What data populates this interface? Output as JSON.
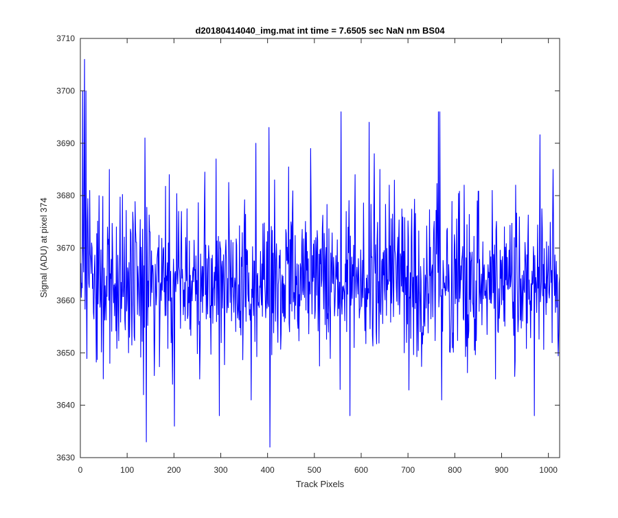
{
  "chart_data": {
    "type": "line",
    "title": "d20180414040_img.mat int time = 7.6505 sec  NaN nm BS04",
    "xlabel": "Track Pixels",
    "ylabel": "Signal (ADU) at pixel 374",
    "xlim": [
      0,
      1024
    ],
    "ylim": [
      3630,
      3710
    ],
    "xticks": [
      0,
      100,
      200,
      300,
      400,
      500,
      600,
      700,
      800,
      900,
      1000
    ],
    "yticks": [
      3630,
      3640,
      3650,
      3660,
      3670,
      3680,
      3690,
      3700,
      3710
    ],
    "grid": false,
    "legend": "none",
    "line_color": "#0000ff",
    "series": [
      {
        "num_points": 1024,
        "x_start": 1,
        "x_step": 1,
        "y_mean": 3664,
        "y_std": 7.5,
        "y_min": 3632,
        "y_max": 3706,
        "noise_seed": 374,
        "peaks": [
          {
            "x": 5,
            "y": 3700
          },
          {
            "x": 8,
            "y": 3685
          },
          {
            "x": 9,
            "y": 3706
          },
          {
            "x": 12,
            "y": 3700
          },
          {
            "x": 20,
            "y": 3681
          },
          {
            "x": 40,
            "y": 3680
          },
          {
            "x": 62,
            "y": 3685
          },
          {
            "x": 138,
            "y": 3691
          },
          {
            "x": 141,
            "y": 3633
          },
          {
            "x": 135,
            "y": 3642
          },
          {
            "x": 190,
            "y": 3684
          },
          {
            "x": 197,
            "y": 3644
          },
          {
            "x": 201,
            "y": 3636
          },
          {
            "x": 210,
            "y": 3677
          },
          {
            "x": 255,
            "y": 3645
          },
          {
            "x": 290,
            "y": 3687
          },
          {
            "x": 297,
            "y": 3638
          },
          {
            "x": 365,
            "y": 3641
          },
          {
            "x": 375,
            "y": 3690
          },
          {
            "x": 403,
            "y": 3693
          },
          {
            "x": 405,
            "y": 3632
          },
          {
            "x": 415,
            "y": 3683
          },
          {
            "x": 450,
            "y": 3675
          },
          {
            "x": 492,
            "y": 3689
          },
          {
            "x": 555,
            "y": 3643
          },
          {
            "x": 557,
            "y": 3696
          },
          {
            "x": 587,
            "y": 3684
          },
          {
            "x": 617,
            "y": 3694
          },
          {
            "x": 628,
            "y": 3688
          },
          {
            "x": 640,
            "y": 3685
          },
          {
            "x": 660,
            "y": 3682
          },
          {
            "x": 692,
            "y": 3650
          },
          {
            "x": 765,
            "y": 3696
          },
          {
            "x": 768,
            "y": 3696
          },
          {
            "x": 772,
            "y": 3641
          },
          {
            "x": 820,
            "y": 3682
          },
          {
            "x": 880,
            "y": 3681
          },
          {
            "x": 887,
            "y": 3645
          },
          {
            "x": 930,
            "y": 3682
          },
          {
            "x": 970,
            "y": 3638
          },
          {
            "x": 1010,
            "y": 3685
          }
        ]
      }
    ]
  }
}
